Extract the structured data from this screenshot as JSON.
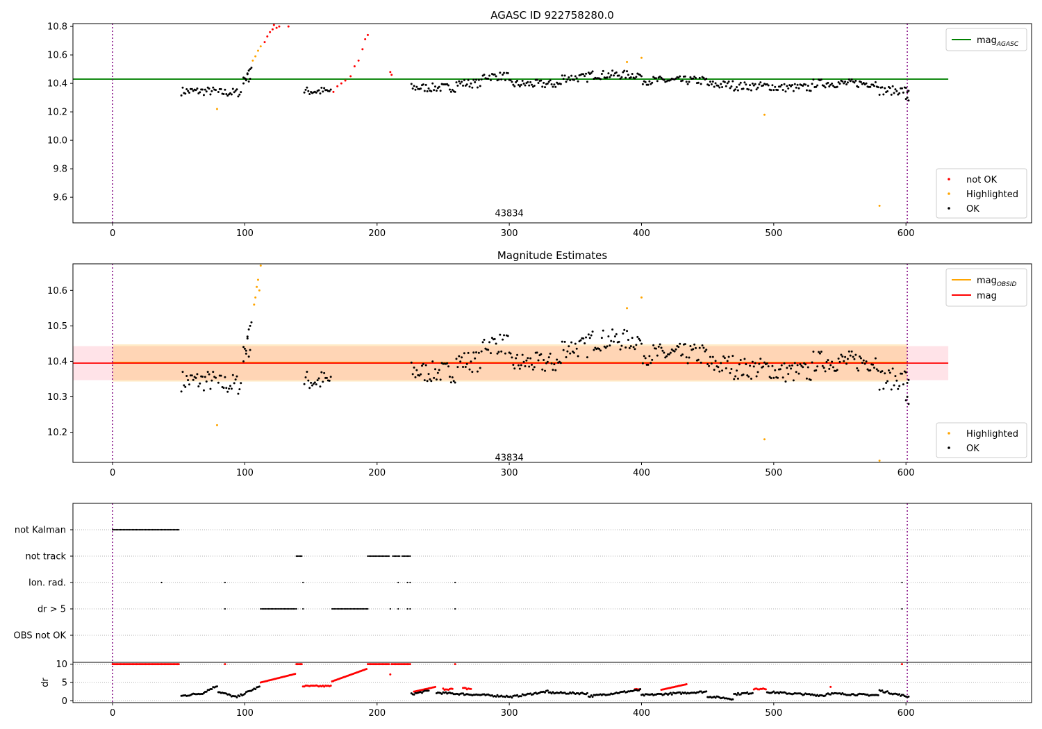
{
  "chart_data": [
    {
      "type": "scatter",
      "title": "AGASC ID 922758280.0",
      "xlim": [
        -30,
        695
      ],
      "ylim": [
        9.42,
        10.82
      ],
      "xticks": [
        0,
        100,
        200,
        300,
        400,
        500,
        600
      ],
      "yticks": [
        9.6,
        9.8,
        10.0,
        10.2,
        10.4,
        10.6,
        10.8
      ],
      "annotation": {
        "text": "43834",
        "x": 300,
        "y": 9.49
      },
      "vlines": [
        0,
        601
      ],
      "hlines": [
        {
          "name": "mag_AGASC",
          "y": 10.43,
          "xmax": 632,
          "color": "#008000"
        }
      ],
      "line_legend": {
        "entries": [
          {
            "base": "mag",
            "sub": "AGASC",
            "color": "#008000"
          }
        ],
        "placement": "upper-right"
      },
      "point_legend": {
        "entries": [
          {
            "label": "not OK",
            "color": "#ff0000"
          },
          {
            "label": "Highlighted",
            "color": "#ffa500"
          },
          {
            "label": "OK",
            "color": "#000000"
          }
        ],
        "placement": "lower-right"
      },
      "series": [
        {
          "name": "not OK",
          "color": "#ff0000",
          "points": [
            [
              115,
              10.69
            ],
            [
              117,
              10.73
            ],
            [
              119,
              10.76
            ],
            [
              121,
              10.78
            ],
            [
              122,
              10.81
            ],
            [
              124,
              10.79
            ],
            [
              126,
              10.8
            ],
            [
              133,
              10.8
            ],
            [
              167,
              10.34
            ],
            [
              170,
              10.38
            ],
            [
              173,
              10.4
            ],
            [
              176,
              10.42
            ],
            [
              180,
              10.45
            ],
            [
              183,
              10.52
            ],
            [
              186,
              10.56
            ],
            [
              189,
              10.64
            ],
            [
              191,
              10.71
            ],
            [
              193,
              10.74
            ],
            [
              210,
              10.48
            ],
            [
              211,
              10.46
            ]
          ]
        },
        {
          "name": "Highlighted",
          "color": "#ffa500",
          "points": [
            [
              79,
              10.22
            ],
            [
              106,
              10.56
            ],
            [
              108,
              10.59
            ],
            [
              110,
              10.63
            ],
            [
              112,
              10.66
            ],
            [
              389,
              10.55
            ],
            [
              400,
              10.58
            ],
            [
              493,
              10.18
            ],
            [
              580,
              9.54
            ]
          ]
        },
        {
          "name": "OK",
          "color": "#000000",
          "gen": "mag"
        }
      ]
    },
    {
      "type": "scatter",
      "title": "Magnitude Estimates",
      "xlim": [
        -30,
        695
      ],
      "ylim": [
        10.115,
        10.675
      ],
      "xticks": [
        0,
        100,
        200,
        300,
        400,
        500,
        600
      ],
      "yticks": [
        10.2,
        10.3,
        10.4,
        10.5,
        10.6
      ],
      "annotation": {
        "text": "43834",
        "x": 300,
        "y": 10.13
      },
      "vlines": [
        0,
        601
      ],
      "bands": [
        {
          "y0": 10.347,
          "y1": 10.443,
          "x0": -30,
          "x1": 632,
          "color": "#ffc0cb",
          "opacity": 0.45
        },
        {
          "y0": 10.343,
          "y1": 10.448,
          "x0": 0,
          "x1": 601,
          "color": "#ffa500",
          "opacity": 0.22
        }
      ],
      "hlines": [
        {
          "name": "mag_OBSID",
          "y": 10.397,
          "xmin": 0,
          "xmax": 601,
          "color": "#ffa500"
        },
        {
          "name": "mag",
          "y": 10.395,
          "xmax": 632,
          "color": "#ff0000"
        }
      ],
      "line_legend": {
        "entries": [
          {
            "base": "mag",
            "sub": "OBSID",
            "color": "#ffa500"
          },
          {
            "base": "mag",
            "sub": "",
            "color": "#ff0000"
          }
        ],
        "placement": "upper-right"
      },
      "point_legend": {
        "entries": [
          {
            "label": "Highlighted",
            "color": "#ffa500"
          },
          {
            "label": "OK",
            "color": "#000000"
          }
        ],
        "placement": "lower-right"
      },
      "series": [
        {
          "name": "Highlighted",
          "color": "#ffa500",
          "points": [
            [
              79,
              10.22
            ],
            [
              107,
              10.56
            ],
            [
              108,
              10.58
            ],
            [
              109,
              10.61
            ],
            [
              110,
              10.63
            ],
            [
              111,
              10.6
            ],
            [
              112,
              10.67
            ],
            [
              389,
              10.55
            ],
            [
              400,
              10.58
            ],
            [
              493,
              10.18
            ],
            [
              580,
              10.12
            ]
          ]
        },
        {
          "name": "OK",
          "color": "#000000",
          "gen": "mag"
        }
      ]
    },
    {
      "type": "scatter",
      "xlim": [
        -30,
        695
      ],
      "categories": [
        "not Kalman",
        "not track",
        "Ion. rad.",
        "dr > 5",
        "OBS not OK"
      ],
      "vlines": [
        0,
        601
      ],
      "points": {
        "not Kalman": [
          [
            0,
            50
          ]
        ],
        "not track": [
          [
            139,
            143
          ],
          [
            193,
            209
          ],
          [
            212,
            217
          ],
          [
            219,
            225
          ]
        ],
        "Ion. rad.": [
          37,
          85,
          144,
          216,
          223,
          225,
          259,
          597
        ],
        "dr > 5": [
          85,
          144,
          210,
          216,
          223,
          225,
          259,
          597,
          [
            112,
            139
          ],
          [
            166,
            193
          ]
        ],
        "OBS not OK": []
      }
    },
    {
      "type": "scatter",
      "ylabel": "dr",
      "xlim": [
        -30,
        695
      ],
      "ylim": [
        -0.5,
        10.5
      ],
      "xticks": [
        0,
        100,
        200,
        300,
        400,
        500,
        600
      ],
      "yticks": [
        0,
        5,
        10
      ],
      "vlines": [
        0,
        601
      ],
      "series": [
        {
          "name": "not OK",
          "color": "#ff0000",
          "gen": "dr_red"
        },
        {
          "name": "OK",
          "color": "#000000",
          "gen": "dr_black"
        }
      ]
    }
  ]
}
